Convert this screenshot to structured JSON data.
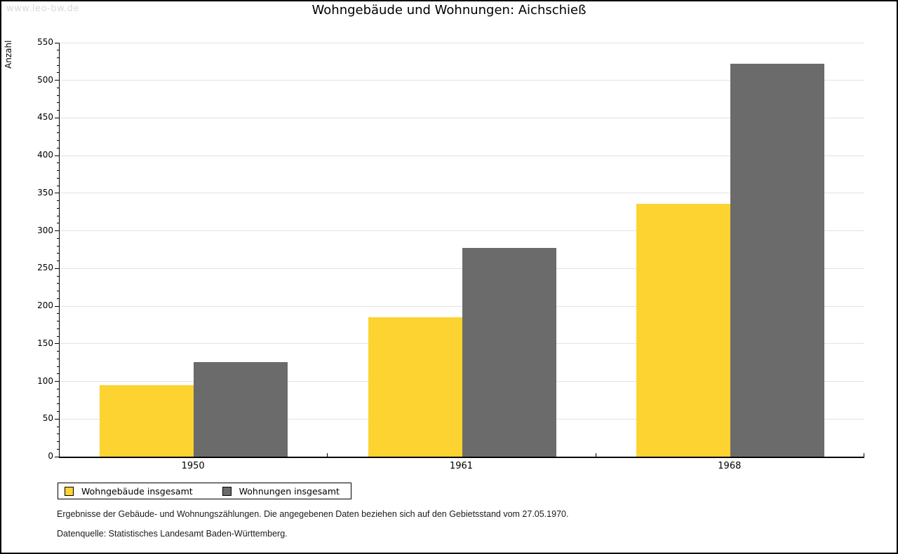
{
  "watermark": "www.leo-bw.de",
  "chart_data": {
    "type": "bar",
    "title": "Wohngebäude und Wohnungen: Aichschieß",
    "categories": [
      "1950",
      "1961",
      "1968"
    ],
    "series": [
      {
        "name": "Wohngebäude insgesamt",
        "color": "#FCD330",
        "values": [
          95,
          185,
          336
        ]
      },
      {
        "name": "Wohnungen insgesamt",
        "color": "#6B6B6B",
        "values": [
          126,
          277,
          522
        ]
      }
    ],
    "ylabel": "Anzahl",
    "ylim": [
      0,
      550
    ],
    "ytick_step": 50,
    "yminor_step": 10,
    "ytick_labels": [
      "0",
      "50",
      "100",
      "150",
      "200",
      "250",
      "300",
      "350",
      "400",
      "450",
      "500",
      "550"
    ],
    "grid": "horizontal-major",
    "legend_position": "bottom-left",
    "gridline_color": "#e2e2e2"
  },
  "footnotes": {
    "line1": "Ergebnisse der Gebäude- und Wohnungszählungen. Die angegebenen Daten beziehen sich auf den Gebietsstand vom 27.05.1970.",
    "line2": "Datenquelle: Statistisches Landesamt Baden-Württemberg."
  }
}
